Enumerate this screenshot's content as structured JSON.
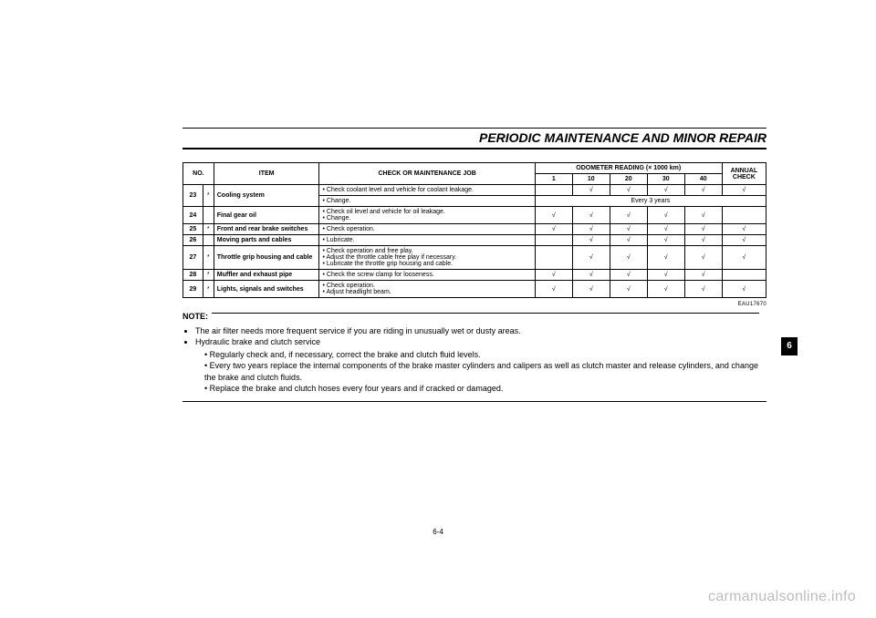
{
  "header": {
    "title": "PERIODIC MAINTENANCE AND MINOR REPAIR"
  },
  "table": {
    "head": {
      "no": "NO.",
      "item": "ITEM",
      "job": "CHECK OR MAINTENANCE JOB",
      "odo": "ODOMETER READING (× 1000 km)",
      "annual": "ANNUAL CHECK",
      "km": [
        "1",
        "10",
        "20",
        "30",
        "40"
      ]
    },
    "colors": {
      "border": "#000000",
      "text": "#000000",
      "background": "#ffffff"
    },
    "font_size_pt": 7,
    "rows": [
      {
        "no": "23",
        "star": "*",
        "item": "Cooling system",
        "lines": [
          {
            "job": "Check coolant level and vehicle for coolant leakage.",
            "ticks": [
              "",
              "√",
              "√",
              "√",
              "√"
            ],
            "annual": "√"
          },
          {
            "job": "Change.",
            "span_text": "Every 3 years"
          }
        ]
      },
      {
        "no": "24",
        "star": "",
        "item": "Final gear oil",
        "lines": [
          {
            "job_multi": [
              "Check oil level and vehicle for oil leakage.",
              "Change."
            ],
            "ticks": [
              "√",
              "√",
              "√",
              "√",
              "√"
            ],
            "annual": ""
          }
        ]
      },
      {
        "no": "25",
        "star": "*",
        "item": "Front and rear brake switches",
        "lines": [
          {
            "job": "Check operation.",
            "ticks": [
              "√",
              "√",
              "√",
              "√",
              "√"
            ],
            "annual": "√"
          }
        ]
      },
      {
        "no": "26",
        "star": "",
        "item": "Moving parts and cables",
        "lines": [
          {
            "job": "Lubricate.",
            "ticks": [
              "",
              "√",
              "√",
              "√",
              "√"
            ],
            "annual": "√"
          }
        ]
      },
      {
        "no": "27",
        "star": "*",
        "item": "Throttle grip housing and cable",
        "lines": [
          {
            "job_multi": [
              "Check operation and free play.",
              "Adjust the throttle cable free play if necessary.",
              "Lubricate the throttle grip housing and cable."
            ],
            "ticks": [
              "",
              "√",
              "√",
              "√",
              "√"
            ],
            "annual": "√"
          }
        ]
      },
      {
        "no": "28",
        "star": "*",
        "item": "Muffler and exhaust pipe",
        "lines": [
          {
            "job": "Check the screw clamp for looseness.",
            "ticks": [
              "√",
              "√",
              "√",
              "√",
              "√"
            ],
            "annual": ""
          }
        ]
      },
      {
        "no": "29",
        "star": "*",
        "item": "Lights, signals and switches",
        "lines": [
          {
            "job_multi": [
              "Check operation.",
              "Adjust headlight beam."
            ],
            "ticks": [
              "√",
              "√",
              "√",
              "√",
              "√"
            ],
            "annual": "√"
          }
        ]
      }
    ]
  },
  "eau_code": "EAU17670",
  "note_label": "NOTE:",
  "notes": {
    "outer": [
      "The air filter needs more frequent service if you are riding in unusually wet or dusty areas.",
      "Hydraulic brake and clutch service"
    ],
    "inner": [
      "Regularly check and, if necessary, correct the brake and clutch fluid levels.",
      "Every two years replace the internal components of the brake master cylinders and calipers as well as clutch master and release cylinders, and change the brake and clutch fluids.",
      "Replace the brake and clutch hoses every four years and if cracked or damaged."
    ]
  },
  "page_number": "6-4",
  "side_tab": "6",
  "watermark": "carmanualsonline.info",
  "style": {
    "page_bg": "#ffffff",
    "text_color": "#000000",
    "rule_color": "#000000",
    "header_fontsize_pt": 14,
    "body_fontsize_pt": 9,
    "watermark_color": "#bdbdbd"
  }
}
